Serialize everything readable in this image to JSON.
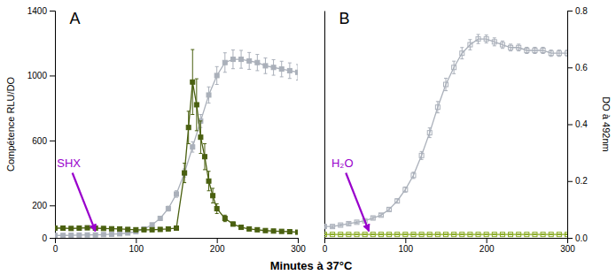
{
  "chart_data": [
    {
      "type": "line",
      "title": "A",
      "xlabel": "Minutes à 37°C",
      "ylabel": "Compétence RLU/DO",
      "xlim": [
        0,
        300
      ],
      "xticks": [
        0,
        100,
        200,
        300
      ],
      "ylim": [
        0,
        1400
      ],
      "yticks": [
        0,
        200,
        600,
        1000,
        1400
      ],
      "series": [
        {
          "color": "#aab0ba",
          "marker": "square",
          "x": [
            0,
            10,
            20,
            30,
            40,
            50,
            60,
            70,
            80,
            90,
            100,
            110,
            120,
            130,
            140,
            150,
            160,
            170,
            180,
            190,
            200,
            210,
            220,
            230,
            240,
            250,
            260,
            270,
            280,
            290,
            300
          ],
          "values": [
            15,
            15,
            16,
            17,
            18,
            18,
            20,
            22,
            25,
            30,
            38,
            55,
            80,
            120,
            180,
            270,
            400,
            560,
            720,
            880,
            1000,
            1080,
            1100,
            1100,
            1090,
            1080,
            1060,
            1050,
            1040,
            1030,
            1020
          ],
          "errors": [
            4,
            4,
            4,
            4,
            4,
            4,
            4,
            5,
            5,
            6,
            7,
            8,
            10,
            12,
            15,
            20,
            25,
            32,
            40,
            50,
            55,
            60,
            58,
            55,
            52,
            50,
            48,
            48,
            48,
            48,
            48
          ]
        },
        {
          "color": "#4a6010",
          "marker": "square",
          "x": [
            0,
            10,
            20,
            30,
            40,
            50,
            60,
            70,
            80,
            90,
            100,
            110,
            120,
            130,
            140,
            150,
            160,
            165,
            170,
            175,
            180,
            185,
            190,
            195,
            200,
            210,
            220,
            230,
            240,
            250,
            260,
            270,
            280,
            290,
            300
          ],
          "values": [
            60,
            60,
            58,
            60,
            62,
            60,
            58,
            56,
            55,
            52,
            50,
            50,
            50,
            52,
            55,
            60,
            400,
            680,
            960,
            820,
            620,
            500,
            350,
            260,
            180,
            120,
            85,
            65,
            55,
            50,
            45,
            42,
            40,
            38,
            35
          ],
          "errors": [
            6,
            6,
            6,
            6,
            6,
            6,
            6,
            6,
            6,
            6,
            6,
            6,
            6,
            6,
            8,
            12,
            60,
            100,
            200,
            160,
            100,
            80,
            60,
            45,
            30,
            20,
            12,
            8,
            6,
            6,
            5,
            5,
            5,
            5,
            5
          ]
        }
      ],
      "annotations": [
        {
          "text": "SHX",
          "x": 50,
          "y": 30,
          "color": "#9900cc"
        }
      ]
    },
    {
      "type": "line",
      "title": "B",
      "y2label": "DO à 492nm",
      "xlim": [
        0,
        300
      ],
      "xticks": [
        0,
        100,
        200,
        300
      ],
      "ylim": [
        0,
        1400
      ],
      "yticks": [],
      "y2lim": [
        0,
        0.8
      ],
      "y2ticks": [
        {
          "value": 0,
          "label": "0.0"
        },
        0.2,
        0.4,
        0.6,
        0.8
      ],
      "series": [
        {
          "color": "#aab0ba",
          "marker": "open-square",
          "axis": "y2",
          "x": [
            0,
            10,
            20,
            30,
            40,
            50,
            60,
            70,
            80,
            90,
            100,
            110,
            120,
            130,
            140,
            150,
            160,
            170,
            180,
            190,
            200,
            210,
            220,
            230,
            240,
            250,
            260,
            270,
            280,
            290,
            300
          ],
          "values": [
            0.04,
            0.04,
            0.045,
            0.05,
            0.055,
            0.06,
            0.07,
            0.08,
            0.1,
            0.13,
            0.17,
            0.22,
            0.29,
            0.37,
            0.46,
            0.54,
            0.6,
            0.65,
            0.68,
            0.7,
            0.7,
            0.69,
            0.68,
            0.67,
            0.67,
            0.66,
            0.66,
            0.66,
            0.65,
            0.65,
            0.65
          ],
          "errors": [
            0.004,
            0.004,
            0.004,
            0.004,
            0.004,
            0.004,
            0.005,
            0.005,
            0.006,
            0.007,
            0.009,
            0.011,
            0.014,
            0.017,
            0.02,
            0.022,
            0.022,
            0.02,
            0.018,
            0.016,
            0.014,
            0.014,
            0.013,
            0.012,
            0.012,
            0.011,
            0.011,
            0.011,
            0.011,
            0.011,
            0.011
          ]
        },
        {
          "color": "#88aa20",
          "marker": "open-square",
          "axis": "y2",
          "x": [
            0,
            10,
            20,
            30,
            40,
            50,
            60,
            70,
            80,
            90,
            100,
            110,
            120,
            130,
            140,
            150,
            160,
            170,
            180,
            190,
            200,
            210,
            220,
            230,
            240,
            250,
            260,
            270,
            280,
            290,
            300
          ],
          "values": [
            0.012,
            0.012,
            0.012,
            0.012,
            0.012,
            0.012,
            0.012,
            0.012,
            0.012,
            0.012,
            0.012,
            0.012,
            0.012,
            0.012,
            0.012,
            0.012,
            0.012,
            0.012,
            0.012,
            0.012,
            0.012,
            0.012,
            0.012,
            0.012,
            0.012,
            0.012,
            0.012,
            0.012,
            0.012,
            0.012,
            0.012
          ],
          "errors": [
            0.001,
            0.001,
            0.001,
            0.001,
            0.001,
            0.001,
            0.001,
            0.001,
            0.001,
            0.001,
            0.001,
            0.001,
            0.001,
            0.001,
            0.001,
            0.001,
            0.001,
            0.001,
            0.001,
            0.001,
            0.001,
            0.001,
            0.001,
            0.001,
            0.001,
            0.001,
            0.001,
            0.001,
            0.001,
            0.001,
            0.001
          ]
        }
      ],
      "annotations": [
        {
          "text": "H₂O",
          "x": 55,
          "y": 30,
          "color": "#9900cc"
        }
      ]
    }
  ]
}
